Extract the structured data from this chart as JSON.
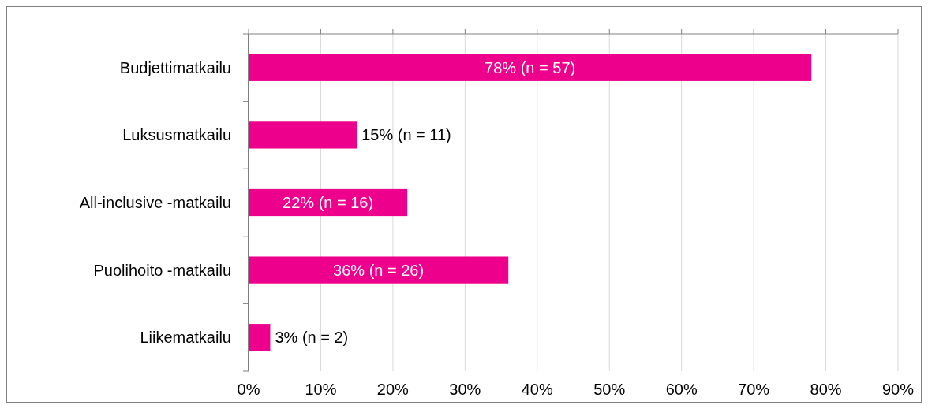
{
  "chart_data": {
    "type": "bar",
    "orientation": "horizontal",
    "categories": [
      "Budjettimatkailu",
      "Luksusmatkailu",
      "All-inclusive -matkailu",
      "Puolihoito -matkailu",
      "Liikematkailu"
    ],
    "values": [
      78,
      15,
      22,
      36,
      3
    ],
    "value_labels": [
      "78% (n = 57)",
      "15% (n = 11)",
      "22% (n = 16)",
      "36% (n = 26)",
      "3% (n = 2)"
    ],
    "color": "#ec008c",
    "xlim": [
      0,
      90
    ],
    "xticks": [
      {
        "value": 0,
        "label": "0%"
      },
      {
        "value": 10,
        "label": "10%"
      },
      {
        "value": 20,
        "label": "20%"
      },
      {
        "value": 30,
        "label": "30%"
      },
      {
        "value": 40,
        "label": "40%"
      },
      {
        "value": 50,
        "label": "50%"
      },
      {
        "value": 60,
        "label": "60%"
      },
      {
        "value": 70,
        "label": "70%"
      },
      {
        "value": 80,
        "label": "80%"
      },
      {
        "value": 90,
        "label": "90%"
      }
    ],
    "grid": "x"
  }
}
